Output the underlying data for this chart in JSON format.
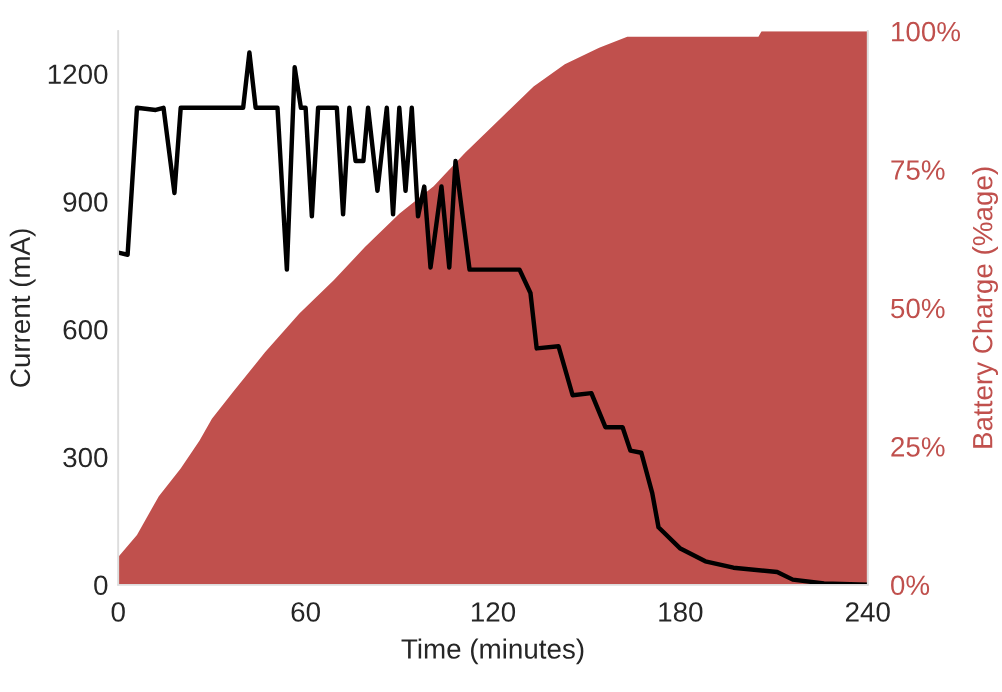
{
  "chart_data": {
    "type": "line",
    "xlabel": "Time (minutes)",
    "ylabel": "Current (mA)",
    "y2label": "Battery Charge (%age)",
    "xlim": [
      0,
      240
    ],
    "xticks": [
      0,
      60,
      120,
      180,
      240
    ],
    "ylim": [
      0,
      1300
    ],
    "yticks": [
      0,
      300,
      600,
      900,
      1200
    ],
    "y2lim": [
      0,
      100
    ],
    "y2ticks": [
      {
        "value": 0,
        "label": "0%"
      },
      {
        "value": 25,
        "label": "25%"
      },
      {
        "value": 50,
        "label": "50%"
      },
      {
        "value": 75,
        "label": "75%"
      },
      {
        "value": 100,
        "label": "100%"
      }
    ],
    "grid": false,
    "legend": false,
    "series": [
      {
        "type": "area",
        "axis": "y2",
        "color": "#c0504d",
        "x": [
          0,
          6,
          13,
          20,
          26,
          30,
          37,
          47,
          58,
          69,
          79,
          90,
          101,
          111,
          122,
          133,
          143,
          154,
          163,
          175,
          205,
          206,
          240
        ],
        "values": [
          5,
          9,
          16,
          21,
          26,
          30,
          35,
          42,
          49,
          55,
          61,
          67,
          72,
          78,
          84,
          90,
          94,
          97,
          99,
          99,
          99,
          100,
          100
        ]
      },
      {
        "color": "#000000",
        "x": [
          0,
          3,
          6,
          12,
          14.5,
          18,
          20,
          40,
          42,
          44,
          51,
          54,
          56.5,
          58.5,
          60,
          62,
          64,
          70,
          72,
          74,
          76,
          78.5,
          80,
          83,
          86,
          88,
          90,
          92,
          94,
          96,
          98,
          100,
          103.5,
          106,
          108,
          112.5,
          128.5,
          132,
          134,
          141,
          145.5,
          151.5,
          156,
          161.5,
          164,
          167.5,
          171,
          173,
          180,
          188,
          197,
          211,
          216,
          226,
          240
        ],
        "values": [
          780,
          775,
          1120,
          1115,
          1120,
          920,
          1120,
          1120,
          1250,
          1120,
          1120,
          740,
          1215,
          1120,
          1120,
          865,
          1120,
          1120,
          870,
          1120,
          995,
          995,
          1120,
          925,
          1120,
          870,
          1120,
          925,
          1120,
          865,
          935,
          745,
          935,
          745,
          995,
          740,
          740,
          685,
          555,
          560,
          445,
          450,
          370,
          370,
          315,
          310,
          215,
          135,
          85,
          55,
          40,
          30,
          12,
          3,
          0
        ]
      }
    ]
  }
}
